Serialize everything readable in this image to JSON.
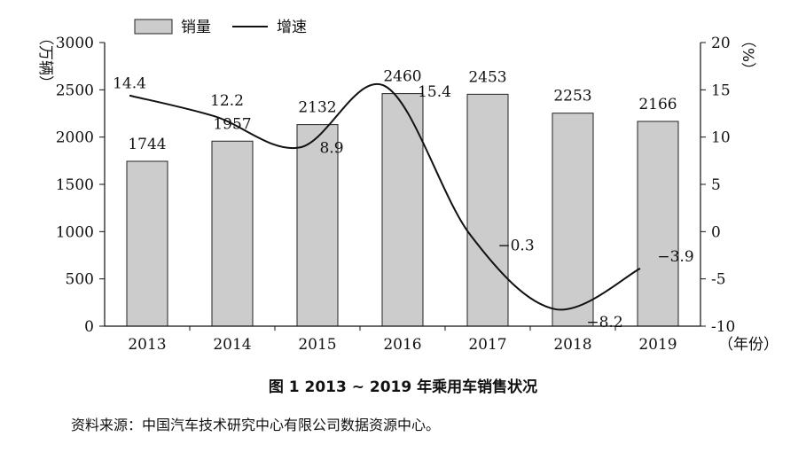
{
  "figure": {
    "caption": "图 1   2013 ~ 2019 年乘用车销售状况",
    "source": "资料来源：中国汽车技术研究中心有限公司数据资源中心。"
  },
  "chart_data": {
    "type": "bar",
    "categories": [
      "2013",
      "2014",
      "2015",
      "2016",
      "2017",
      "2018",
      "2019"
    ],
    "xlabel": "（年份）",
    "ylabel": "（万辆）",
    "y2label": "（%）",
    "ylim": [
      0,
      3000
    ],
    "y2lim": [
      -10,
      20
    ],
    "yticks": [
      0,
      500,
      1000,
      1500,
      2000,
      2500,
      3000
    ],
    "y2ticks": [
      -10,
      -5,
      0,
      5,
      10,
      15,
      20
    ],
    "grid": false,
    "legend_position": "top-left",
    "bar_color": "#cccccc",
    "line_color": "#111111",
    "series": [
      {
        "name": "销量",
        "type": "bar",
        "axis": "left",
        "values": [
          1744,
          1957,
          2132,
          2460,
          2453,
          2253,
          2166
        ],
        "labels": [
          "1744",
          "1957",
          "2132",
          "2460",
          "2453",
          "2253",
          "2166"
        ]
      },
      {
        "name": "增速",
        "type": "line",
        "axis": "right",
        "smooth": true,
        "values": [
          14.4,
          12.2,
          8.9,
          15.4,
          -0.3,
          -8.2,
          -3.9
        ],
        "labels": [
          "14.4",
          "12.2",
          "8.9",
          "15.4",
          "−0.3",
          "−8.2",
          "−3.9"
        ]
      }
    ]
  }
}
